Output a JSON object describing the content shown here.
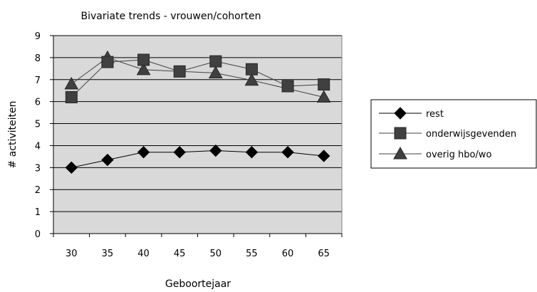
{
  "chart_data": {
    "type": "line",
    "title": "Bivariate trends - vrouwen/cohorten",
    "xlabel": "Geboortejaar",
    "ylabel": "# activiteiten",
    "categories": [
      "30",
      "35",
      "40",
      "45",
      "50",
      "55",
      "60",
      "65"
    ],
    "ylim": [
      0,
      9
    ],
    "yticks": [
      "0",
      "1",
      "2",
      "3",
      "4",
      "5",
      "6",
      "7",
      "8",
      "9"
    ],
    "grid": true,
    "plot_background": "#d9d9d9",
    "legend_position": "right",
    "series": [
      {
        "name": "rest",
        "marker": "diamond",
        "color": "#000000",
        "values": [
          3.0,
          3.35,
          3.7,
          3.7,
          3.77,
          3.7,
          3.7,
          3.53
        ]
      },
      {
        "name": "onderwijsgevenden",
        "marker": "square",
        "color": "#404040",
        "values": [
          6.2,
          7.8,
          7.9,
          7.37,
          7.83,
          7.47,
          6.7,
          6.78
        ]
      },
      {
        "name": "overig hbo/wo",
        "marker": "triangle",
        "color": "#404040",
        "values": [
          6.8,
          8.0,
          7.45,
          null,
          7.3,
          6.97,
          null,
          6.2
        ]
      }
    ]
  }
}
